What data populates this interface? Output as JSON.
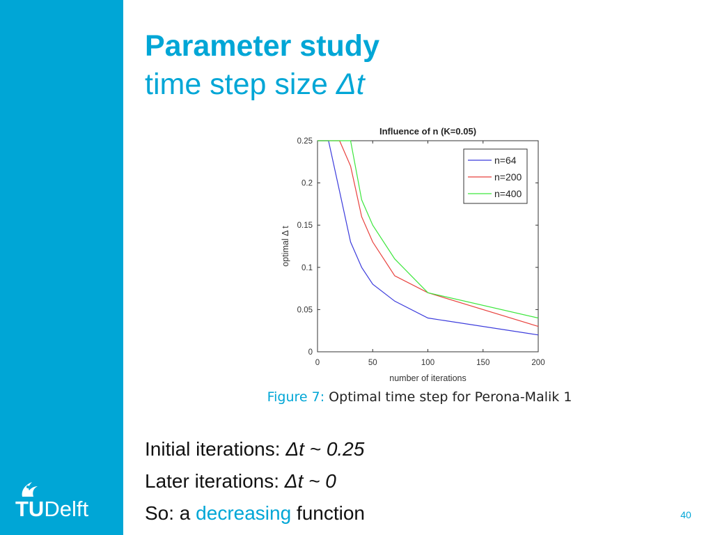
{
  "slide": {
    "title": "Parameter study",
    "subtitle_prefix": "time step size ",
    "subtitle_symbol": "Δt",
    "page_number": "40",
    "brand_color": "#00a6d6"
  },
  "logo": {
    "tu": "TU",
    "delft": "Delft",
    "icon": "flame-icon"
  },
  "caption": {
    "label": "Figure 7:",
    "text": "Optimal time step for Perona-Malik 1"
  },
  "bullets": {
    "line1_label": "Initial iterations: ",
    "line1_symbol": "Δt",
    "line1_value": " ~ 0.25",
    "line2_label": "Later iterations: ",
    "line2_symbol": "Δt",
    "line2_value": " ~ 0",
    "line3_prefix": "So: a ",
    "line3_accent": "decreasing",
    "line3_suffix": " function"
  },
  "chart_data": {
    "type": "line",
    "title": "Influence of n (K=0.05)",
    "xlabel": "number of iterations",
    "ylabel": "optimal Δ t",
    "xlim": [
      0,
      200
    ],
    "ylim": [
      0,
      0.25
    ],
    "xticks": [
      0,
      50,
      100,
      150,
      200
    ],
    "xtick_labels": [
      "0",
      "50",
      "100",
      "150",
      "200"
    ],
    "yticks": [
      0,
      0.05,
      0.1,
      0.15,
      0.2,
      0.25
    ],
    "ytick_labels": [
      "0",
      "0.05",
      "0.1",
      "0.15",
      "0.2",
      "0.25"
    ],
    "grid": false,
    "legend_position": "top-right",
    "series": [
      {
        "name": "n=64",
        "color": "#3b3bdc",
        "x": [
          0,
          10,
          20,
          30,
          40,
          50,
          70,
          100,
          200
        ],
        "y": [
          0.25,
          0.25,
          0.19,
          0.13,
          0.1,
          0.08,
          0.06,
          0.04,
          0.02
        ]
      },
      {
        "name": "n=200",
        "color": "#e8403c",
        "x": [
          0,
          10,
          20,
          30,
          40,
          50,
          70,
          100,
          200
        ],
        "y": [
          0.25,
          0.25,
          0.25,
          0.22,
          0.16,
          0.13,
          0.09,
          0.07,
          0.03
        ]
      },
      {
        "name": "n=400",
        "color": "#3ce63c",
        "x": [
          0,
          10,
          20,
          30,
          40,
          50,
          70,
          100,
          200
        ],
        "y": [
          0.25,
          0.25,
          0.25,
          0.25,
          0.18,
          0.15,
          0.11,
          0.07,
          0.04
        ]
      }
    ]
  }
}
